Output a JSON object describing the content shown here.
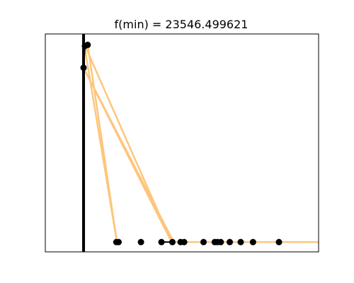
{
  "chart_data": {
    "type": "line",
    "title": "f(min) = 23546.499621",
    "xlabel": "",
    "ylabel": "",
    "xlim": [
      0,
      100
    ],
    "ylim": [
      0,
      100
    ],
    "grid": false,
    "colors": {
      "search_path": "#fdc67d",
      "marker": "#000000",
      "vline": "#000000",
      "axes": "#000000"
    },
    "vline_x": 14,
    "series": [
      {
        "kind": "search-path",
        "x": [
          14.5,
          15.5,
          26.2,
          14.2,
          46.2,
          14.0,
          47.0,
          49.5,
          51.5,
          53.0,
          58.0,
          60.5,
          62.5,
          64.5,
          67.0,
          72.0,
          76.0,
          80.0,
          84.0,
          88.0,
          91.0,
          94.0,
          96.5,
          98.0,
          100.0
        ],
        "y": [
          94.5,
          95.0,
          4.5,
          95.5,
          4.5,
          84.5,
          4.5,
          4.5,
          4.5,
          4.5,
          4.5,
          4.5,
          4.5,
          4.5,
          4.5,
          4.5,
          4.5,
          4.5,
          4.5,
          4.5,
          4.5,
          4.5,
          4.5,
          4.5,
          4.5
        ]
      },
      {
        "kind": "points",
        "x": [
          14.5,
          15.5,
          14.0,
          26.0,
          26.8,
          35.0,
          42.5,
          46.5,
          49.5,
          50.8,
          57.9,
          62.0,
          63.0,
          64.2,
          67.5,
          71.5,
          76.0,
          85.5
        ],
        "y": [
          94.5,
          95.0,
          84.5,
          4.5,
          4.5,
          4.5,
          4.5,
          4.5,
          4.5,
          4.5,
          4.5,
          4.5,
          4.5,
          4.5,
          4.5,
          4.5,
          4.5,
          4.5
        ]
      }
    ]
  }
}
